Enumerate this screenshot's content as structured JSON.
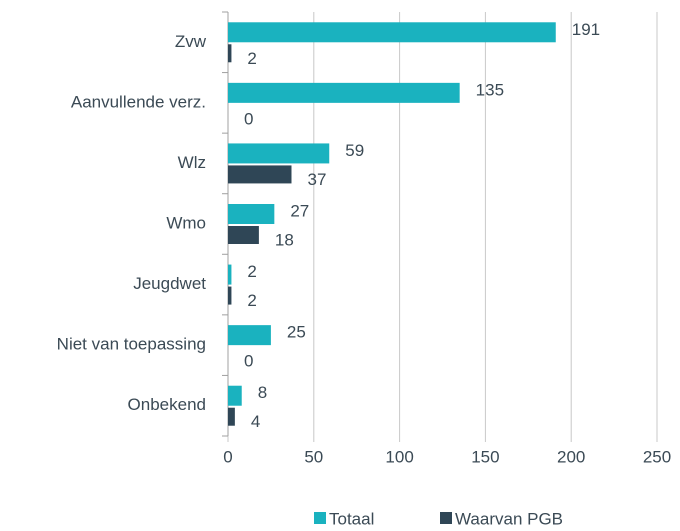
{
  "chart_data": {
    "type": "hbar",
    "categories": [
      "Zvw",
      "Aanvullende verz.",
      "Wlz",
      "Wmo",
      "Jeugdwet",
      "Niet van toepassing",
      "Onbekend"
    ],
    "series": [
      {
        "name": "Totaal",
        "color": "#1ab2bf",
        "values": [
          191,
          135,
          59,
          27,
          2,
          25,
          8
        ]
      },
      {
        "name": "Waarvan PGB",
        "color": "#2f4656",
        "values": [
          2,
          0,
          37,
          18,
          2,
          0,
          4
        ]
      }
    ],
    "xlim": [
      0,
      250
    ],
    "xticks": [
      0,
      50,
      100,
      150,
      200,
      250
    ],
    "grid": true,
    "legend": "bottom"
  }
}
